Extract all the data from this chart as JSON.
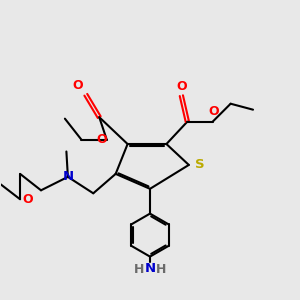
{
  "bg_color": "#e8e8e8",
  "atom_colors": {
    "C": "#000000",
    "O": "#ff0000",
    "N": "#0000cc",
    "S": "#bbaa00",
    "H": "#6a6a6a"
  },
  "bond_color": "#000000",
  "figsize": [
    3.0,
    3.0
  ],
  "dpi": 100
}
